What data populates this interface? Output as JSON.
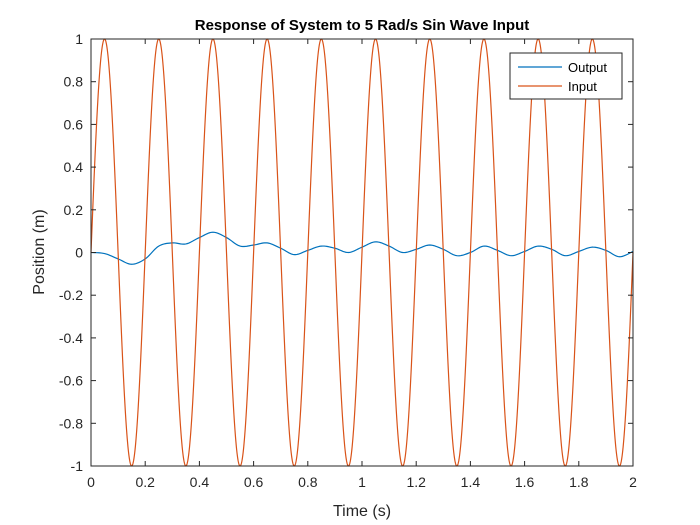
{
  "chart_data": {
    "type": "line",
    "title": "Response of System to 5 Rad/s Sin Wave Input",
    "xlabel": "Time (s)",
    "ylabel": "Position (m)",
    "xlim": [
      0,
      2
    ],
    "ylim": [
      -1,
      1
    ],
    "xticks": [
      0,
      0.2,
      0.4,
      0.6,
      0.8,
      1,
      1.2,
      1.4,
      1.6,
      1.8,
      2
    ],
    "xtick_labels": [
      "0",
      "0.2",
      "0.4",
      "0.6",
      "0.8",
      "1",
      "1.2",
      "1.4",
      "1.6",
      "1.8",
      "2"
    ],
    "yticks": [
      -1,
      -0.8,
      -0.6,
      -0.4,
      -0.2,
      0,
      0.2,
      0.4,
      0.6,
      0.8,
      1
    ],
    "ytick_labels": [
      "-1",
      "-0.8",
      "-0.6",
      "-0.4",
      "-0.2",
      "0",
      "0.2",
      "0.4",
      "0.6",
      "0.8",
      "1"
    ],
    "grid": false,
    "legend_position": "top-right",
    "series": [
      {
        "name": "Output",
        "color": "#0072BD",
        "x": [
          0,
          0.05,
          0.1,
          0.15,
          0.2,
          0.25,
          0.3,
          0.35,
          0.4,
          0.45,
          0.5,
          0.55,
          0.6,
          0.65,
          0.7,
          0.75,
          0.8,
          0.85,
          0.9,
          0.95,
          1.0,
          1.05,
          1.1,
          1.15,
          1.2,
          1.25,
          1.3,
          1.35,
          1.4,
          1.45,
          1.5,
          1.55,
          1.6,
          1.65,
          1.7,
          1.75,
          1.8,
          1.85,
          1.9,
          1.95,
          2.0
        ],
        "y": [
          0,
          -0.005,
          -0.03,
          -0.055,
          -0.03,
          0.03,
          0.045,
          0.04,
          0.07,
          0.095,
          0.07,
          0.03,
          0.035,
          0.045,
          0.02,
          -0.01,
          0.01,
          0.03,
          0.02,
          0.0,
          0.025,
          0.05,
          0.03,
          0.0,
          0.015,
          0.035,
          0.015,
          -0.015,
          0.0,
          0.03,
          0.01,
          -0.015,
          0.005,
          0.03,
          0.015,
          -0.015,
          0.005,
          0.025,
          0.01,
          -0.02,
          0.005
        ]
      },
      {
        "name": "Input",
        "color": "#D95319",
        "function": "sin(2*pi*5*t)",
        "samples": 1600
      }
    ]
  }
}
